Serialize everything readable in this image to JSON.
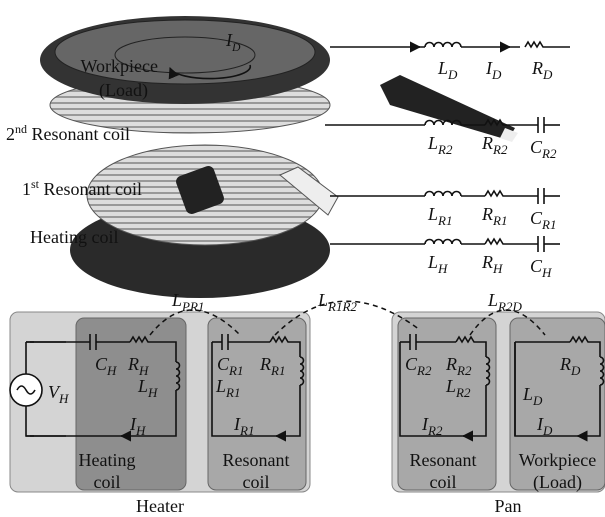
{
  "top": {
    "workpiece": [
      "Workpiece",
      "(Load)"
    ],
    "pan_current": {
      "s": "I",
      "sub": "D"
    },
    "coil2_label": {
      "num": "2",
      "sup": "nd",
      "text": " Resonant coil"
    },
    "coil1_label": {
      "num": "1",
      "sup": "st",
      "text": " Resonant coil"
    },
    "heating_label": "Heating coil",
    "rows": [
      [
        {
          "s": "L",
          "sub": "D"
        },
        {
          "s": "I",
          "sub": "D"
        },
        {
          "s": "R",
          "sub": "D"
        }
      ],
      [
        {
          "s": "L",
          "sub": "R2"
        },
        {
          "s": "R",
          "sub": "R2"
        },
        {
          "s": "C",
          "sub": "R2"
        }
      ],
      [
        {
          "s": "L",
          "sub": "R1"
        },
        {
          "s": "R",
          "sub": "R1"
        },
        {
          "s": "C",
          "sub": "R1"
        }
      ],
      [
        {
          "s": "L",
          "sub": "H"
        },
        {
          "s": "R",
          "sub": "H"
        },
        {
          "s": "C",
          "sub": "H"
        }
      ]
    ]
  },
  "bottom": {
    "couplings": [
      {
        "s": "L",
        "sub": "PR1"
      },
      {
        "s": "L",
        "sub": "R1R2"
      },
      {
        "s": "L",
        "sub": "R2D"
      }
    ],
    "source": {
      "s": "V",
      "sub": "H"
    },
    "loops": [
      {
        "C": {
          "s": "C",
          "sub": "H"
        },
        "R": {
          "s": "R",
          "sub": "H"
        },
        "L": {
          "s": "L",
          "sub": "H"
        },
        "I": {
          "s": "I",
          "sub": "H"
        },
        "label": [
          "Heating",
          "coil"
        ]
      },
      {
        "C": {
          "s": "C",
          "sub": "R1"
        },
        "R": {
          "s": "R",
          "sub": "R1"
        },
        "L": {
          "s": "L",
          "sub": "R1"
        },
        "I": {
          "s": "I",
          "sub": "R1"
        },
        "label": [
          "Resonant",
          "coil"
        ]
      },
      {
        "C": {
          "s": "C",
          "sub": "R2"
        },
        "R": {
          "s": "R",
          "sub": "R2"
        },
        "L": {
          "s": "L",
          "sub": "R2"
        },
        "I": {
          "s": "I",
          "sub": "R2"
        },
        "label": [
          "Resonant",
          "coil"
        ]
      },
      {
        "R": {
          "s": "R",
          "sub": "D"
        },
        "L": {
          "s": "L",
          "sub": "D"
        },
        "I": {
          "s": "I",
          "sub": "D"
        },
        "label": [
          "Workpiece",
          "(Load)"
        ]
      }
    ],
    "groups": [
      "Heater",
      "Pan"
    ]
  }
}
